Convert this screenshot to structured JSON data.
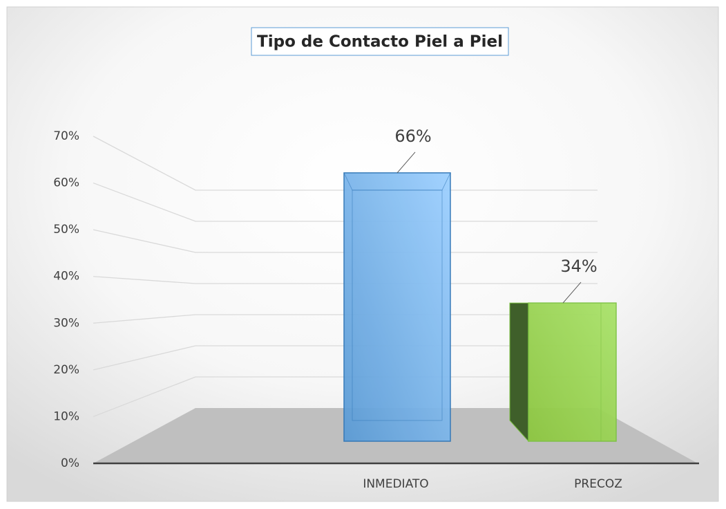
{
  "chart_data": {
    "type": "bar3d",
    "title": "Tipo de Contacto Piel a Piel",
    "categories": [
      "INMEDIATO",
      "PRECOZ"
    ],
    "values": [
      66,
      34
    ],
    "value_labels": [
      "66%",
      "34%"
    ],
    "colors": [
      "#6fa8dc",
      "#92d050"
    ],
    "ylim": [
      0,
      70
    ],
    "yticks": [
      {
        "value": 0,
        "label": "0%"
      },
      {
        "value": 10,
        "label": "10%"
      },
      {
        "value": 20,
        "label": "20%"
      },
      {
        "value": 30,
        "label": "30%"
      },
      {
        "value": 40,
        "label": "40%"
      },
      {
        "value": 50,
        "label": "50%"
      },
      {
        "value": 60,
        "label": "60%"
      },
      {
        "value": 70,
        "label": "70%"
      }
    ],
    "grid": true
  }
}
